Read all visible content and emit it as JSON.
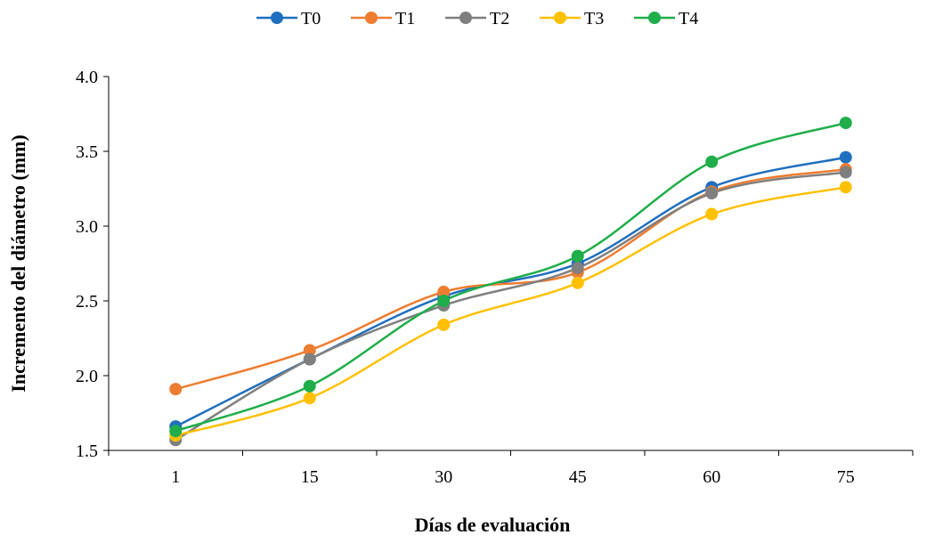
{
  "chart_data": {
    "type": "line",
    "title": "",
    "xlabel": "Días de evaluación",
    "ylabel": "Incremento del diámetro (mm)",
    "categories": [
      "1",
      "15",
      "30",
      "45",
      "60",
      "75"
    ],
    "ylim": [
      1.5,
      4.0
    ],
    "yticks": [
      "1.5",
      "2.0",
      "2.5",
      "3.0",
      "3.5",
      "4.0"
    ],
    "grid": false,
    "legend_position": "top-center",
    "smooth": true,
    "series": [
      {
        "name": "T0",
        "color": "#1f6fbf",
        "values": [
          1.66,
          2.11,
          2.53,
          2.75,
          3.26,
          3.46
        ]
      },
      {
        "name": "T1",
        "color": "#ed7d31",
        "values": [
          1.91,
          2.17,
          2.56,
          2.69,
          3.23,
          3.38
        ]
      },
      {
        "name": "T2",
        "color": "#7f7f7f",
        "values": [
          1.57,
          2.11,
          2.47,
          2.72,
          3.22,
          3.36
        ]
      },
      {
        "name": "T3",
        "color": "#ffc000",
        "values": [
          1.6,
          1.85,
          2.34,
          2.62,
          3.08,
          3.26
        ]
      },
      {
        "name": "T4",
        "color": "#1fae4a",
        "values": [
          1.63,
          1.93,
          2.5,
          2.8,
          3.43,
          3.69
        ]
      }
    ]
  }
}
